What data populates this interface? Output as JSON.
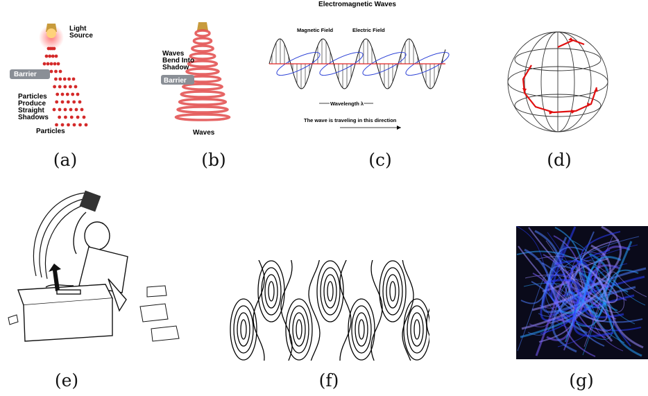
{
  "panels": {
    "a": {
      "caption": "(a)",
      "light_source_label": "Light\nSource",
      "barrier_label": "Barrier",
      "note_label": "Particles\nProduce\nStraight\nShadows",
      "bottom_label": "Particles"
    },
    "b": {
      "caption": "(b)",
      "note_label": "Waves\nBend Into\nShadow",
      "barrier_label": "Barrier",
      "bottom_label": "Waves"
    },
    "c": {
      "caption": "(c)",
      "title": "Electromagnetic Waves",
      "magnetic_label": "Magnetic Field",
      "electric_label": "Electric Field",
      "wavelength_label": "Wavelength λ",
      "direction_label": "The wave is traveling in this direction"
    },
    "d": {
      "caption": "(d)"
    },
    "e": {
      "caption": "(e)"
    },
    "f": {
      "caption": "(f)"
    },
    "g": {
      "caption": "(g)"
    }
  },
  "colors": {
    "particle_red": "#d42a2a",
    "wave_red": "#e24a4a",
    "barrier_gray": "#8a8f96",
    "electric_field": "#111111",
    "magnetic_field": "#2a3fd6",
    "axis_red": "#e22222",
    "sphere_path": "#e01010",
    "plasma_dark": "#0a0a1a",
    "plasma_blue": "#3a5bff"
  }
}
